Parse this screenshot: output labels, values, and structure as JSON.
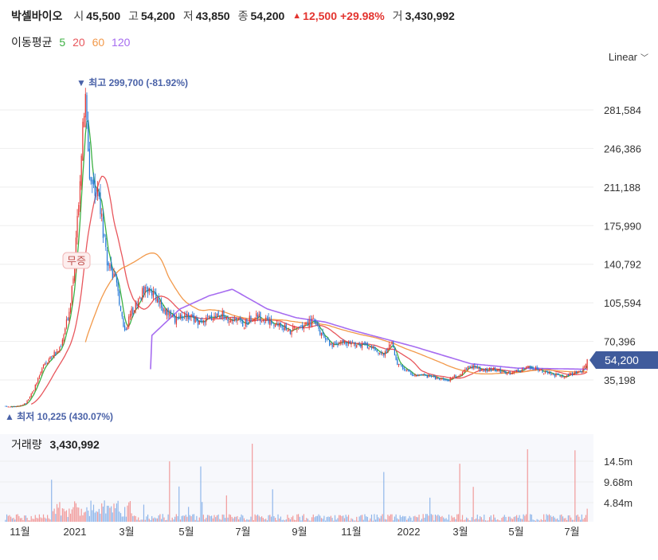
{
  "header": {
    "name": "박셀바이오",
    "open_label": "시",
    "open_value": "45,500",
    "high_label": "고",
    "high_value": "54,200",
    "low_label": "저",
    "low_value": "43,850",
    "close_label": "종",
    "close_value": "54,200",
    "change_value": "12,500",
    "change_pct": "+29.98%",
    "volume_label": "거",
    "volume_value": "3,430,992"
  },
  "ma_legend": {
    "label": "이동평균",
    "items": [
      {
        "label": "5",
        "color": "#3cb043"
      },
      {
        "label": "20",
        "color": "#e8565c"
      },
      {
        "label": "60",
        "color": "#f2994a"
      },
      {
        "label": "120",
        "color": "#a66cf0"
      }
    ]
  },
  "scale": {
    "label": "Linear"
  },
  "annotations": {
    "high": "▼ 최고 299,700 (-81.92%)",
    "low": "▲ 최저 10,225 (430.07%)",
    "mujeung": "무증",
    "current_price": "54,200"
  },
  "volume_panel": {
    "label": "거래량",
    "value": "3,430,992"
  },
  "colors": {
    "up": "#e3342f",
    "down": "#1e74d6",
    "grid": "#eeeeee",
    "current_badge": "#3f5b9c"
  },
  "chart_data": [
    {
      "type": "candlestick",
      "price_ticks": [
        "281,584",
        "246,386",
        "211,188",
        "175,990",
        "140,792",
        "105,594",
        "70,396",
        "35,198"
      ],
      "price_tick_values": [
        281584,
        246386,
        211188,
        175990,
        140792,
        105594,
        70396,
        35198
      ],
      "x_ticks": [
        "11월",
        "2021",
        "3월",
        "5월",
        "7월",
        "9월",
        "11월",
        "2022",
        "3월",
        "5월",
        "7월"
      ],
      "close_anchors": [
        [
          0,
          11000
        ],
        [
          0.02,
          11000
        ],
        [
          0.035,
          14000
        ],
        [
          0.05,
          28000
        ],
        [
          0.065,
          48000
        ],
        [
          0.08,
          57000
        ],
        [
          0.095,
          64000
        ],
        [
          0.11,
          100000
        ],
        [
          0.12,
          150000
        ],
        [
          0.13,
          240000
        ],
        [
          0.137,
          295000
        ],
        [
          0.145,
          220000
        ],
        [
          0.16,
          205000
        ],
        [
          0.175,
          140000
        ],
        [
          0.19,
          125000
        ],
        [
          0.205,
          80000
        ],
        [
          0.215,
          95000
        ],
        [
          0.225,
          105000
        ],
        [
          0.24,
          120000
        ],
        [
          0.255,
          115000
        ],
        [
          0.27,
          100000
        ],
        [
          0.29,
          90000
        ],
        [
          0.31,
          95000
        ],
        [
          0.33,
          87000
        ],
        [
          0.35,
          92000
        ],
        [
          0.37,
          96000
        ],
        [
          0.39,
          90000
        ],
        [
          0.41,
          86000
        ],
        [
          0.43,
          95000
        ],
        [
          0.45,
          88000
        ],
        [
          0.47,
          86000
        ],
        [
          0.49,
          80000
        ],
        [
          0.51,
          85000
        ],
        [
          0.53,
          89000
        ],
        [
          0.545,
          75000
        ],
        [
          0.56,
          66000
        ],
        [
          0.58,
          70000
        ],
        [
          0.6,
          68000
        ],
        [
          0.63,
          65000
        ],
        [
          0.65,
          58000
        ],
        [
          0.665,
          72000
        ],
        [
          0.67,
          52000
        ],
        [
          0.7,
          40000
        ],
        [
          0.73,
          38000
        ],
        [
          0.76,
          35000
        ],
        [
          0.78,
          40000
        ],
        [
          0.8,
          48000
        ],
        [
          0.82,
          44000
        ],
        [
          0.84,
          45000
        ],
        [
          0.86,
          41000
        ],
        [
          0.88,
          44000
        ],
        [
          0.9,
          47000
        ],
        [
          0.92,
          44000
        ],
        [
          0.94,
          40000
        ],
        [
          0.96,
          39000
        ],
        [
          0.985,
          43000
        ],
        [
          0.99,
          41700
        ],
        [
          1.0,
          54200
        ]
      ],
      "ma120_anchors": [
        [
          0.25,
          75000
        ],
        [
          0.3,
          100000
        ],
        [
          0.35,
          112000
        ],
        [
          0.39,
          118000
        ],
        [
          0.4,
          115000
        ],
        [
          0.45,
          100000
        ],
        [
          0.5,
          92000
        ],
        [
          0.55,
          88000
        ],
        [
          0.6,
          80000
        ],
        [
          0.7,
          66000
        ],
        [
          0.8,
          50000
        ],
        [
          0.88,
          46000
        ],
        [
          1.0,
          45000
        ]
      ]
    },
    {
      "type": "bar",
      "name": "거래량",
      "y_ticks": [
        "14.5m",
        "9.68m",
        "4.84m"
      ],
      "y_tick_values": [
        14500000,
        9680000,
        4840000
      ],
      "latest_value": 3430992
    }
  ]
}
